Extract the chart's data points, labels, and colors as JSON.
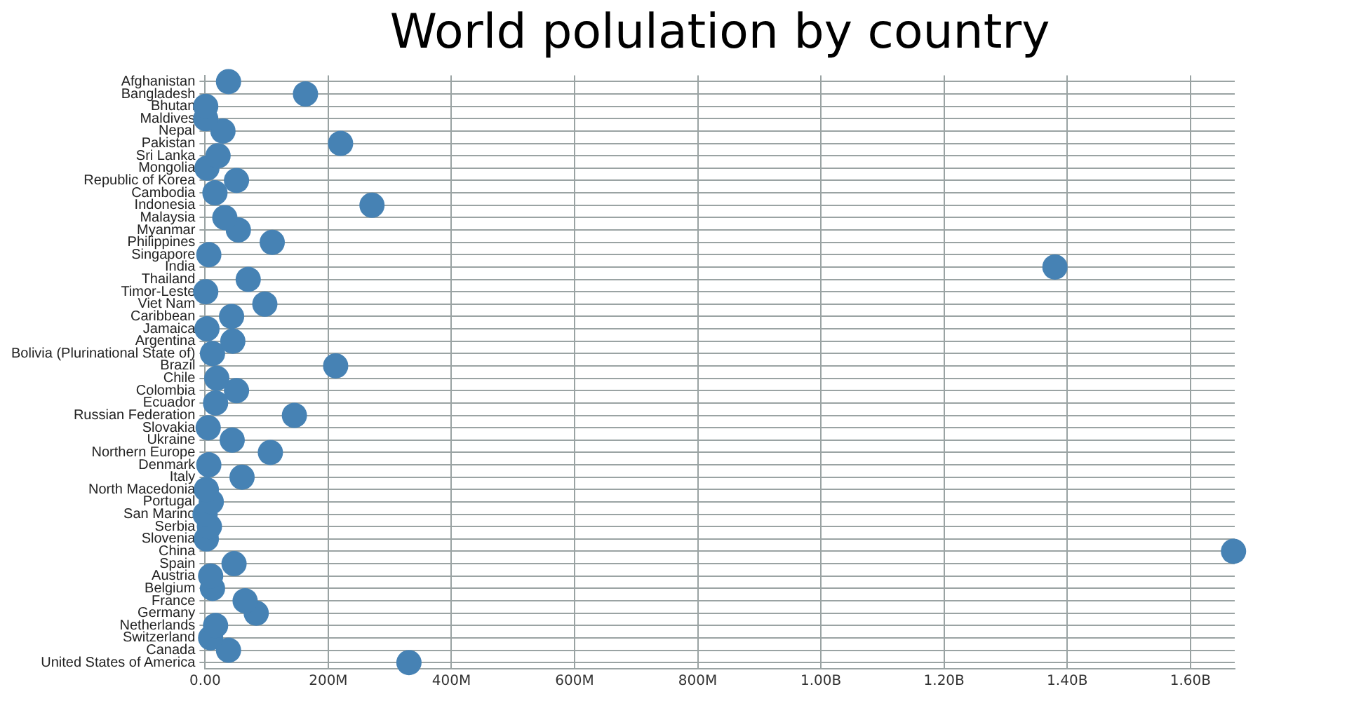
{
  "chart_data": {
    "type": "scatter",
    "orientation": "horizontal",
    "title": "World polulation by country",
    "categories": [
      "Afghanistan",
      "Bangladesh",
      "Bhutan",
      "Maldives",
      "Nepal",
      "Pakistan",
      "Sri Lanka",
      "Mongolia",
      "Republic of Korea",
      "Cambodia",
      "Indonesia",
      "Malaysia",
      "Myanmar",
      "Philippines",
      "Singapore",
      "India",
      "Thailand",
      "Timor-Leste",
      "Viet Nam",
      "Caribbean",
      "Jamaica",
      "Argentina",
      "Bolivia (Plurinational State of)",
      "Brazil",
      "Chile",
      "Colombia",
      "Ecuador",
      "Russian Federation",
      "Slovakia",
      "Ukraine",
      "Northern Europe",
      "Denmark",
      "Italy",
      "North Macedonia",
      "Portugal",
      "San Marino",
      "Serbia",
      "Slovenia",
      "China",
      "Spain",
      "Austria",
      "Belgium",
      "France",
      "Germany",
      "Netherlands",
      "Switzerland",
      "Canada",
      "United States of America"
    ],
    "values": [
      38000000,
      163000000,
      1000000,
      1000000,
      29000000,
      220000000,
      21000000,
      3000000,
      51000000,
      16000000,
      271000000,
      32000000,
      54000000,
      109000000,
      6000000,
      1380000000,
      70000000,
      1000000,
      97000000,
      43000000,
      3000000,
      45000000,
      12000000,
      212000000,
      19000000,
      51000000,
      17000000,
      145000000,
      5000000,
      44000000,
      106000000,
      6000000,
      60000000,
      2000000,
      10000000,
      0,
      7000000,
      2000000,
      1670000000,
      47000000,
      9000000,
      12000000,
      65000000,
      83000000,
      17000000,
      9000000,
      38000000,
      331000000
    ],
    "color": "#4682b4",
    "marker": "circle",
    "xlim": [
      0,
      1672000000
    ],
    "xticks": [
      {
        "value": 0,
        "label": "0.00"
      },
      {
        "value": 200000000,
        "label": "200M"
      },
      {
        "value": 400000000,
        "label": "400M"
      },
      {
        "value": 600000000,
        "label": "600M"
      },
      {
        "value": 800000000,
        "label": "800M"
      },
      {
        "value": 1000000000,
        "label": "1.00B"
      },
      {
        "value": 1200000000,
        "label": "1.20B"
      },
      {
        "value": 1400000000,
        "label": "1.40B"
      },
      {
        "value": 1600000000,
        "label": "1.60B"
      }
    ],
    "grid": true,
    "legend": false
  }
}
